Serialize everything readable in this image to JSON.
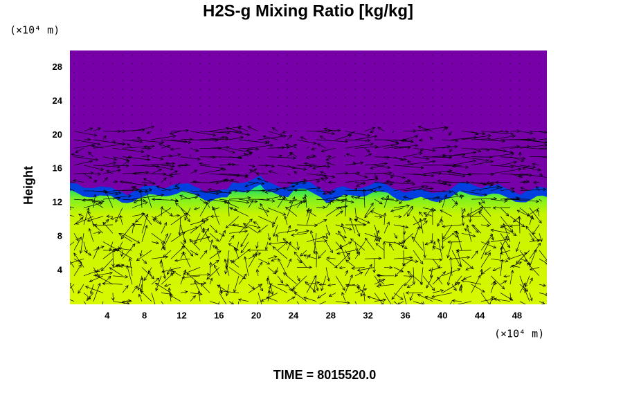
{
  "chart_data": {
    "type": "contour",
    "title": "H2S-g Mixing Ratio [kg/kg]",
    "ylabel": "Height",
    "xunit": "(×10⁴ m)",
    "yunit": "(×10⁴ m)",
    "footer": "TIME = 8015520.0",
    "xlim": [
      0,
      51.2
    ],
    "ylim": [
      0,
      30
    ],
    "xticks": [
      4,
      8,
      12,
      16,
      20,
      24,
      28,
      32,
      36,
      40,
      44,
      48
    ],
    "yticks": [
      4,
      8,
      12,
      16,
      20,
      24,
      28
    ]
  }
}
